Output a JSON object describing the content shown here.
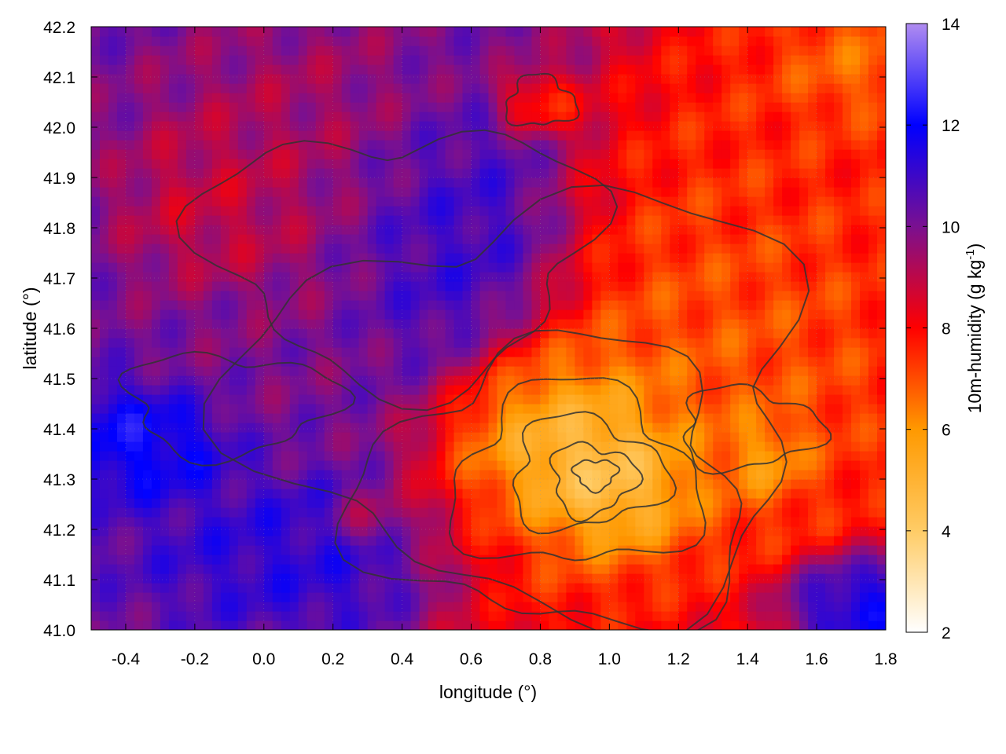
{
  "chart_data": {
    "type": "heatmap",
    "title": "",
    "xlabel": "longitude (°)",
    "ylabel": "latitude (°)",
    "xlim": [
      -0.5,
      1.8
    ],
    "ylim": [
      41.0,
      42.2
    ],
    "xticks": [
      -0.4,
      -0.2,
      0.0,
      0.2,
      0.4,
      0.6,
      0.8,
      1.0,
      1.2,
      1.4,
      1.6,
      1.8
    ],
    "xtick_labels": [
      "-0.4",
      "-0.2",
      "0.0",
      "0.2",
      "0.4",
      "0.6",
      "0.8",
      "1.0",
      "1.2",
      "1.4",
      "1.6",
      "1.8"
    ],
    "yticks": [
      41.0,
      41.1,
      41.2,
      41.3,
      41.4,
      41.5,
      41.6,
      41.7,
      41.8,
      41.9,
      42.0,
      42.1,
      42.2
    ],
    "ytick_labels": [
      "41.0",
      "41.1",
      "41.2",
      "41.3",
      "41.4",
      "41.5",
      "41.6",
      "41.7",
      "41.8",
      "41.9",
      "42.0",
      "42.1",
      "42.2"
    ],
    "colorbar": {
      "label": "10m-humidity (g kg⁻¹)",
      "label_main": "10m-humidity (g kg",
      "label_sup": "-1",
      "label_end": ")",
      "range": [
        2,
        14
      ],
      "ticks": [
        2,
        4,
        6,
        8,
        10,
        12,
        14
      ],
      "tick_labels": [
        "2",
        "4",
        "6",
        "8",
        "10",
        "12",
        "14"
      ],
      "colormap": [
        {
          "value": 2,
          "color": "#ffffff"
        },
        {
          "value": 4,
          "color": "#ffcc66"
        },
        {
          "value": 6,
          "color": "#ff9900"
        },
        {
          "value": 8,
          "color": "#ff0000"
        },
        {
          "value": 10,
          "color": "#7a1090"
        },
        {
          "value": 12,
          "color": "#0000ff"
        },
        {
          "value": 14,
          "color": "#b08cf0"
        }
      ]
    },
    "humidity_blobs": [
      {
        "lon": 0.95,
        "lat": 41.3,
        "value": 2.5,
        "rlon": 0.2,
        "rlat": 0.11
      },
      {
        "lon": 0.9,
        "lat": 41.35,
        "value": 4.5,
        "rlon": 0.3,
        "rlat": 0.18
      },
      {
        "lon": 1.45,
        "lat": 41.35,
        "value": 5.0,
        "rlon": 0.1,
        "rlat": 0.07
      },
      {
        "lon": 1.35,
        "lat": 41.55,
        "value": 6.5,
        "rlon": 0.4,
        "rlat": 0.3
      },
      {
        "lon": 1.45,
        "lat": 41.9,
        "value": 7.5,
        "rlon": 0.45,
        "rlat": 0.4
      },
      {
        "lon": 1.7,
        "lat": 42.12,
        "value": 6.0,
        "rlon": 0.2,
        "rlat": 0.1
      },
      {
        "lon": 0.75,
        "lat": 41.2,
        "value": 7.5,
        "rlon": 0.3,
        "rlat": 0.15
      },
      {
        "lon": 0.8,
        "lat": 42.05,
        "value": 7.0,
        "rlon": 0.1,
        "rlat": 0.05
      },
      {
        "lon": 0.1,
        "lat": 41.9,
        "value": 9.0,
        "rlon": 0.4,
        "rlat": 0.25
      },
      {
        "lon": -0.15,
        "lat": 41.85,
        "value": 8.5,
        "rlon": 0.2,
        "rlat": 0.12
      },
      {
        "lon": -0.05,
        "lat": 41.55,
        "value": 10.0,
        "rlon": 0.3,
        "rlat": 0.12
      },
      {
        "lon": -0.35,
        "lat": 41.38,
        "value": 12.5,
        "rlon": 0.2,
        "rlat": 0.1
      },
      {
        "lon": 0.15,
        "lat": 41.15,
        "value": 11.5,
        "rlon": 0.4,
        "rlat": 0.12
      },
      {
        "lon": 0.5,
        "lat": 41.8,
        "value": 11.5,
        "rlon": 0.3,
        "rlat": 0.2
      },
      {
        "lon": 1.75,
        "lat": 41.05,
        "value": 12.5,
        "rlon": 0.2,
        "rlat": 0.08
      },
      {
        "lon": 0.3,
        "lat": 41.22,
        "value": 8.5,
        "rlon": 0.1,
        "rlat": 0.05
      }
    ],
    "contour_lines": [
      {
        "lon": 0.96,
        "lat": 41.31,
        "rlon": 0.06,
        "rlat": 0.03
      },
      {
        "lon": 0.95,
        "lat": 41.3,
        "rlon": 0.12,
        "rlat": 0.07
      },
      {
        "lon": 0.93,
        "lat": 41.31,
        "rlon": 0.22,
        "rlat": 0.11
      },
      {
        "lon": 0.9,
        "lat": 41.3,
        "rlon": 0.35,
        "rlat": 0.18
      },
      {
        "lon": 0.85,
        "lat": 41.28,
        "rlon": 0.55,
        "rlat": 0.28
      },
      {
        "lon": 0.8,
        "lat": 41.45,
        "rlon": 0.8,
        "rlat": 0.4
      },
      {
        "lon": 0.4,
        "lat": 41.75,
        "rlon": 0.55,
        "rlat": 0.25
      },
      {
        "lon": -0.1,
        "lat": 41.45,
        "rlon": 0.3,
        "rlat": 0.1
      },
      {
        "lon": 1.4,
        "lat": 41.4,
        "rlon": 0.2,
        "rlat": 0.08
      },
      {
        "lon": 0.8,
        "lat": 42.05,
        "rlon": 0.1,
        "rlat": 0.05
      }
    ],
    "grid": true,
    "legend": "none"
  }
}
